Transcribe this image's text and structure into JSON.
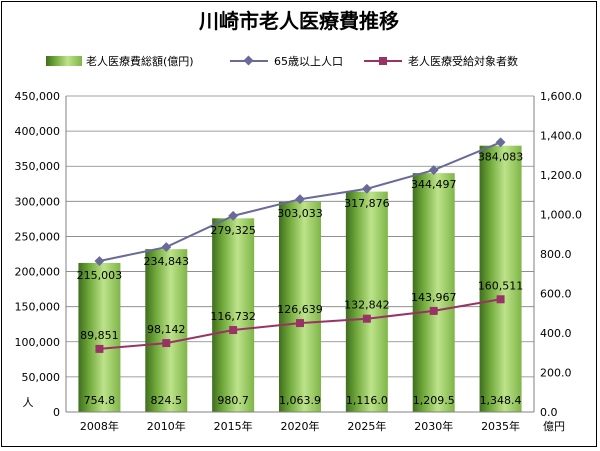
{
  "chart_data": {
    "type": "bar",
    "title": "川崎市老人医療費推移",
    "categories": [
      "2008年",
      "2010年",
      "2015年",
      "2020年",
      "2025年",
      "2030年",
      "2035年"
    ],
    "series": [
      {
        "name": "老人医療費総額(億円)",
        "kind": "bar",
        "axis": "right",
        "color": "#8fc350",
        "values": [
          754.8,
          824.5,
          980.7,
          1063.9,
          1116.0,
          1209.5,
          1348.4
        ],
        "labels": [
          "754.8",
          "824.5",
          "980.7",
          "1,063.9",
          "1,116.0",
          "1,209.5",
          "1,348.4"
        ]
      },
      {
        "name": "65歳以上人口",
        "kind": "line",
        "axis": "left",
        "color": "#6a6a9a",
        "marker": "diamond",
        "values": [
          215003,
          234843,
          279325,
          303033,
          317876,
          344497,
          384083
        ],
        "labels": [
          "215,003",
          "234,843",
          "279,325",
          "303,033",
          "317,876",
          "344,497",
          "384,083"
        ]
      },
      {
        "name": "老人医療受給対象者数",
        "kind": "line",
        "axis": "left",
        "color": "#993366",
        "marker": "square",
        "values": [
          89851,
          98142,
          116732,
          126639,
          132842,
          143967,
          160511
        ],
        "labels": [
          "89,851",
          "98,142",
          "116,732",
          "126,639",
          "132,842",
          "143,967",
          "160,511"
        ]
      }
    ],
    "y_left": {
      "unit": "人",
      "ylim": [
        0,
        450000
      ],
      "ticks": [
        "0",
        "50,000",
        "100,000",
        "150,000",
        "200,000",
        "250,000",
        "300,000",
        "350,000",
        "400,000",
        "450,000"
      ]
    },
    "y_right": {
      "unit": "億円",
      "ylim": [
        0,
        1600
      ],
      "ticks": [
        "0.0",
        "200.0",
        "400.0",
        "600.0",
        "800.0",
        "1,000.0",
        "1,200.0",
        "1,400.0",
        "1,600.0"
      ]
    },
    "grid": true,
    "legend_position": "top"
  }
}
